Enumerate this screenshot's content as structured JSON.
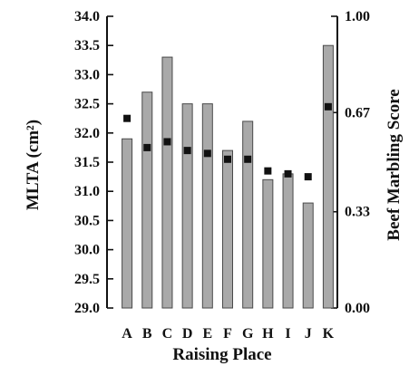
{
  "chart_data": {
    "type": "bar",
    "xlabel": "Raising Place",
    "ylabel_left": "MLTA (cm²)",
    "ylabel_right": "Beef Marbling Score",
    "categories": [
      "A",
      "B",
      "C",
      "D",
      "E",
      "F",
      "G",
      "H",
      "I",
      "J",
      "K"
    ],
    "ylim_left": [
      29.0,
      34.0
    ],
    "ylim_right": [
      0.0,
      1.0
    ],
    "y_ticks_left": [
      "34.0",
      "33.5",
      "33.0",
      "32.5",
      "32.0",
      "31.5",
      "31.0",
      "30.5",
      "30.0",
      "29.5",
      "29.0"
    ],
    "y_ticks_right": [
      "1.00",
      "0.67",
      "0.33",
      "0.00"
    ],
    "series": [
      {
        "axis": "left",
        "style": "bar",
        "values": [
          31.9,
          32.7,
          33.3,
          32.5,
          32.5,
          31.7,
          32.2,
          31.2,
          31.3,
          30.8,
          33.5
        ]
      },
      {
        "axis": "right",
        "style": "marker",
        "values": [
          0.65,
          0.55,
          0.57,
          0.54,
          0.53,
          0.51,
          0.51,
          0.47,
          0.46,
          0.45,
          0.69
        ]
      }
    ],
    "grid": false,
    "colors": {
      "bar": "#a9a9a9",
      "marker": "#111111"
    }
  }
}
